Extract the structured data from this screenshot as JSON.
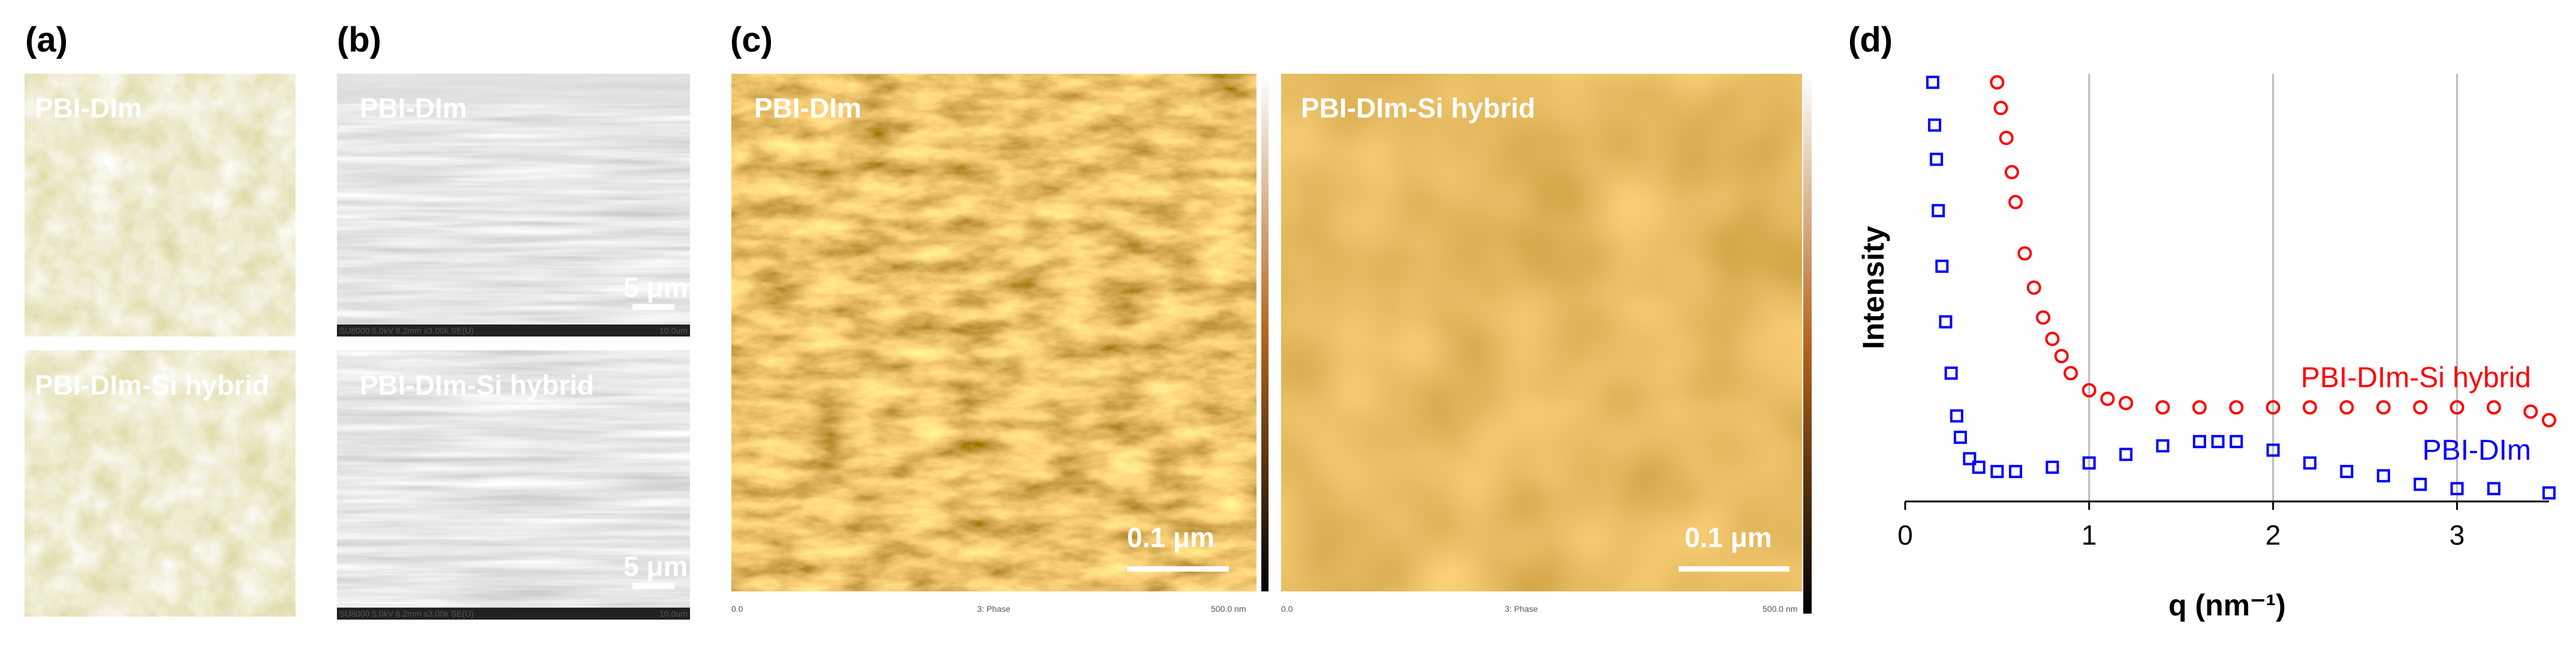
{
  "panels": {
    "a": {
      "label": "(a)",
      "top_caption": "PBI-DIm",
      "bottom_caption": "PBI-DIm-Si hybrid"
    },
    "b": {
      "label": "(b)",
      "top_caption": "PBI-DIm",
      "bottom_caption": "PBI-DIm-Si hybrid",
      "scale_bar": "5 μm",
      "footer": "SU8000 5.0kV 6.2mm x3.00k SE(U)",
      "footer_scale": "10.0um"
    },
    "c": {
      "label": "(c)",
      "left_caption": "PBI-DIm",
      "right_caption": "PBI-DIm-Si hybrid",
      "scale_bar": "0.1 μm",
      "footer": "3: Phase",
      "footer_min": "0.0",
      "footer_max": "500.0 nm"
    },
    "d": {
      "label": "(d)"
    }
  },
  "chart_data": {
    "type": "scatter",
    "xlabel": "q (nm⁻¹)",
    "ylabel": "Intensity",
    "xlim": [
      0,
      3.5
    ],
    "xticks": [
      0,
      1,
      2,
      3
    ],
    "ylim": [
      0,
      100
    ],
    "grid": true,
    "series": [
      {
        "name": "PBI-DIm-Si hybrid",
        "color": "#ff0000",
        "marker": "circle",
        "x": [
          0.5,
          0.52,
          0.55,
          0.58,
          0.6,
          0.65,
          0.7,
          0.75,
          0.8,
          0.85,
          0.9,
          1.0,
          1.1,
          1.2,
          1.4,
          1.6,
          1.8,
          2.0,
          2.2,
          2.4,
          2.6,
          2.8,
          3.0,
          3.2,
          3.4,
          3.5
        ],
        "values": [
          98,
          92,
          85,
          77,
          70,
          58,
          50,
          43,
          38,
          34,
          30,
          26,
          24,
          23,
          22,
          22,
          22,
          22,
          22,
          22,
          22,
          22,
          22,
          22,
          21,
          19
        ]
      },
      {
        "name": "PBI-DIm",
        "color": "#0000ff",
        "marker": "square",
        "x": [
          0.15,
          0.16,
          0.17,
          0.18,
          0.2,
          0.22,
          0.25,
          0.28,
          0.3,
          0.35,
          0.4,
          0.5,
          0.6,
          0.8,
          1.0,
          1.2,
          1.4,
          1.6,
          1.7,
          1.8,
          2.0,
          2.2,
          2.4,
          2.6,
          2.8,
          3.0,
          3.2,
          3.5
        ],
        "values": [
          98,
          88,
          80,
          68,
          55,
          42,
          30,
          20,
          15,
          10,
          8,
          7,
          7,
          8,
          9,
          11,
          13,
          14,
          14,
          14,
          12,
          9,
          7,
          6,
          4,
          3,
          3,
          2
        ]
      }
    ]
  }
}
